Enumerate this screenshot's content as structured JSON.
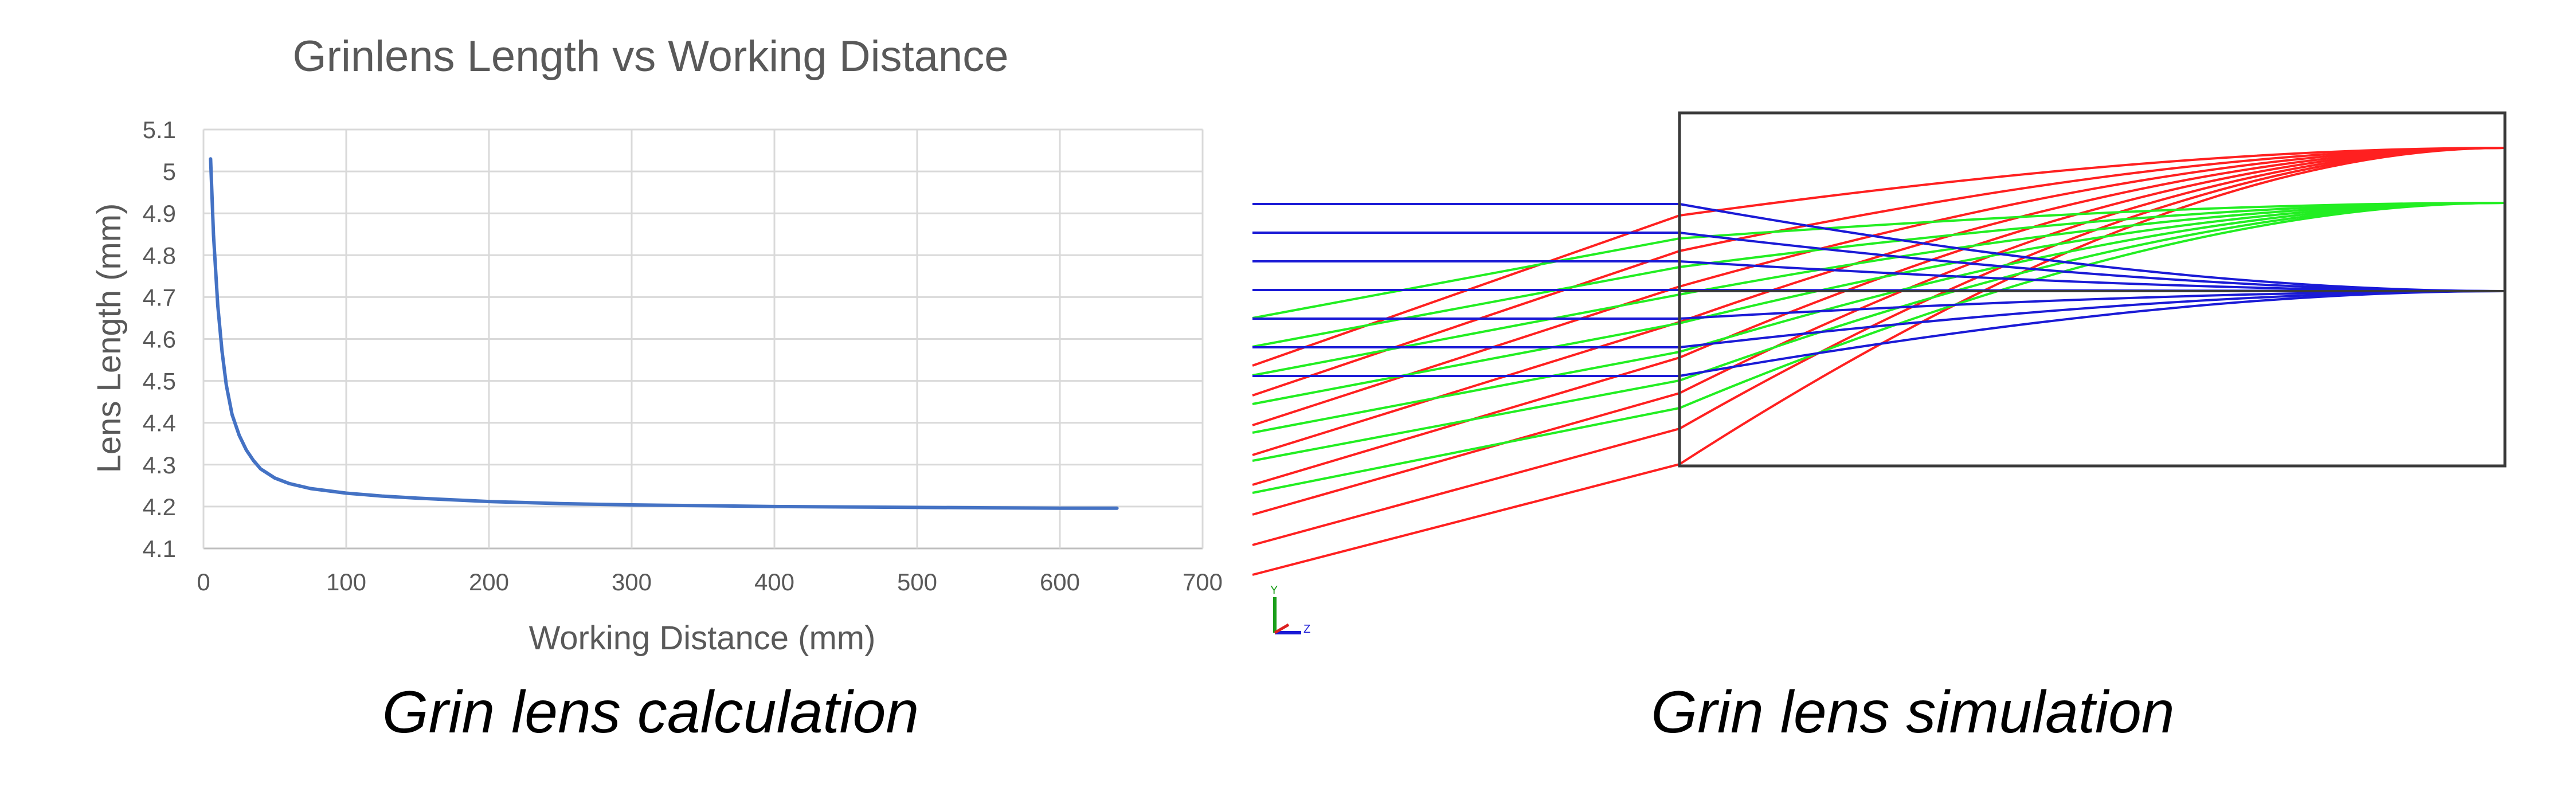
{
  "chart_data": {
    "type": "line",
    "title": "Grinlens Length vs Working Distance",
    "xlabel": "Working Distance (mm)",
    "ylabel": "Lens Length (mm)",
    "xlim": [
      0,
      700
    ],
    "ylim": [
      4.1,
      5.1
    ],
    "x_ticks": [
      "0",
      "100",
      "200",
      "300",
      "400",
      "500",
      "600",
      "700"
    ],
    "y_ticks": [
      "4.1",
      "4.2",
      "4.3",
      "4.4",
      "4.5",
      "4.6",
      "4.7",
      "4.8",
      "4.9",
      "5",
      "5.1"
    ],
    "grid": true,
    "line_color": "#4472c4",
    "series": [
      {
        "x": [
          5,
          7,
          10,
          13,
          16,
          20,
          25,
          30,
          35,
          40,
          50,
          60,
          75,
          100,
          125,
          150,
          200,
          250,
          300,
          350,
          400,
          450,
          500,
          550,
          600,
          640
        ],
        "values": [
          5.03,
          4.85,
          4.68,
          4.57,
          4.49,
          4.42,
          4.37,
          4.335,
          4.31,
          4.29,
          4.268,
          4.255,
          4.243,
          4.232,
          4.225,
          4.22,
          4.212,
          4.207,
          4.204,
          4.202,
          4.2,
          4.199,
          4.198,
          4.197,
          4.196,
          4.196
        ]
      }
    ]
  },
  "captions": {
    "left": "Grin lens calculation",
    "right": "Grin lens simulation"
  },
  "simulation": {
    "colors": {
      "red": "#ff2020",
      "green": "#22ee22",
      "blue": "#1a1ad6",
      "frame": "#3a3a3a"
    },
    "triad": {
      "y_label": "Y",
      "z_label": "Z"
    }
  }
}
